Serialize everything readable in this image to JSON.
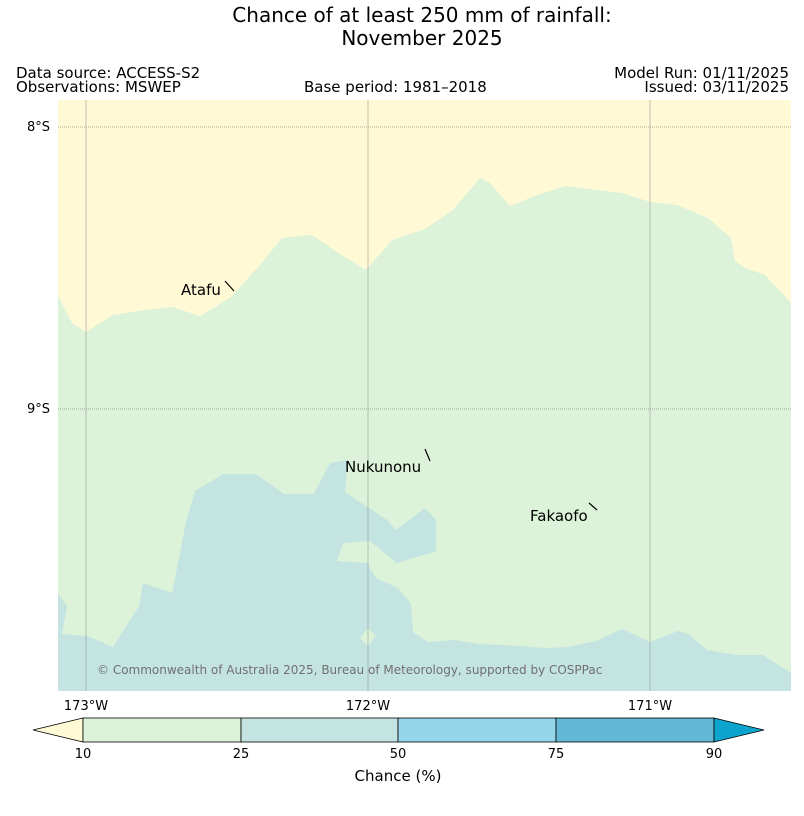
{
  "header": {
    "title_line1": "Chance of at least 250 mm of rainfall:",
    "title_line2": "November 2025",
    "data_source": "Data source: ACCESS-S2",
    "observations": "Observations: MSWEP",
    "base_period": "Base period: 1981–2018",
    "model_run": "Model Run: 01/11/2025",
    "issued": "Issued: 03/11/2025"
  },
  "map": {
    "lat_labels": [
      "8°S",
      "9°S"
    ],
    "lon_labels": [
      "173°W",
      "172°W",
      "171°W"
    ],
    "places": [
      {
        "name": "Atafu"
      },
      {
        "name": "Nukunonu"
      },
      {
        "name": "Fakaofo"
      }
    ],
    "copyright": "© Commonwealth of Australia 2025, Bureau of Meteorology, supported by COSPPac"
  },
  "colorbar": {
    "label": "Chance (%)",
    "ticks": [
      "10",
      "25",
      "50",
      "75",
      "90"
    ],
    "colors": {
      "below_10": "#fff9d6",
      "c10_25": "#dcf2d9",
      "c25_50": "#c4e4e2",
      "c50_75": "#95d6ea",
      "c75_90": "#63b8d8",
      "above_90": "#0ca4cc"
    }
  },
  "colors": {
    "land_grid": "#888888",
    "label_line": "#000000"
  }
}
